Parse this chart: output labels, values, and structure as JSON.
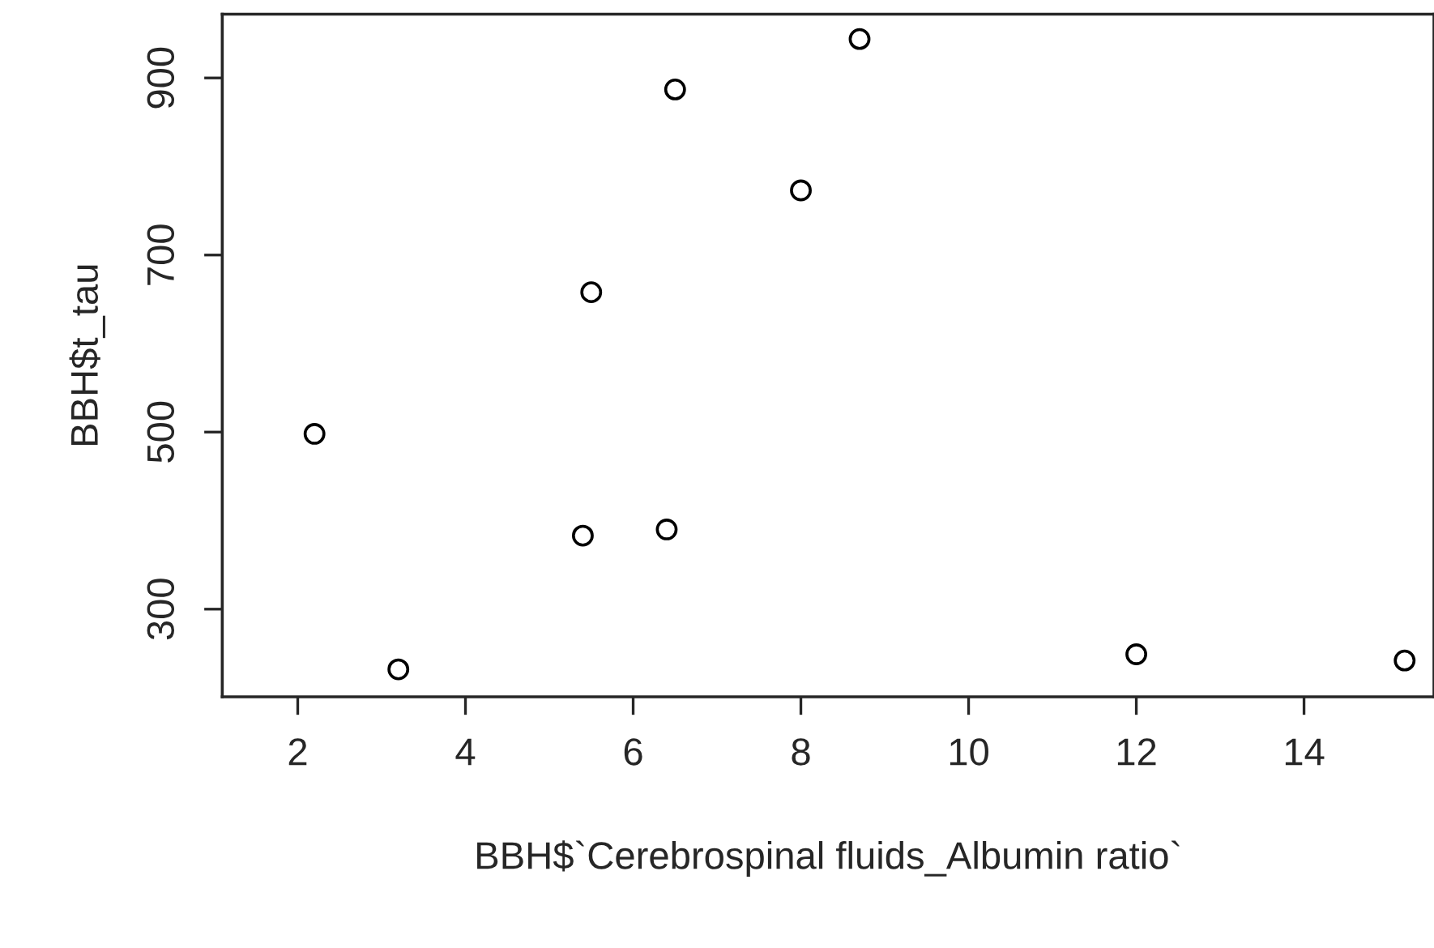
{
  "chart_data": {
    "type": "scatter",
    "xlabel": "BBH$`Cerebrospinal fluids_Albumin ratio`",
    "ylabel": "BBH$t_tau",
    "x": [
      2.2,
      3.2,
      5.4,
      5.5,
      6.4,
      6.5,
      8.0,
      8.7,
      12.0,
      15.2
    ],
    "values": [
      498,
      232,
      383,
      658,
      390,
      887,
      773,
      944,
      249,
      242
    ],
    "color": "#000000",
    "marker": "circle",
    "xlim": [
      1.1,
      15.55
    ],
    "ylim": [
      201,
      972
    ],
    "xticks": [
      2,
      4,
      6,
      8,
      10,
      12,
      14
    ],
    "yticks": [
      300,
      500,
      700,
      900
    ],
    "grid": false
  }
}
